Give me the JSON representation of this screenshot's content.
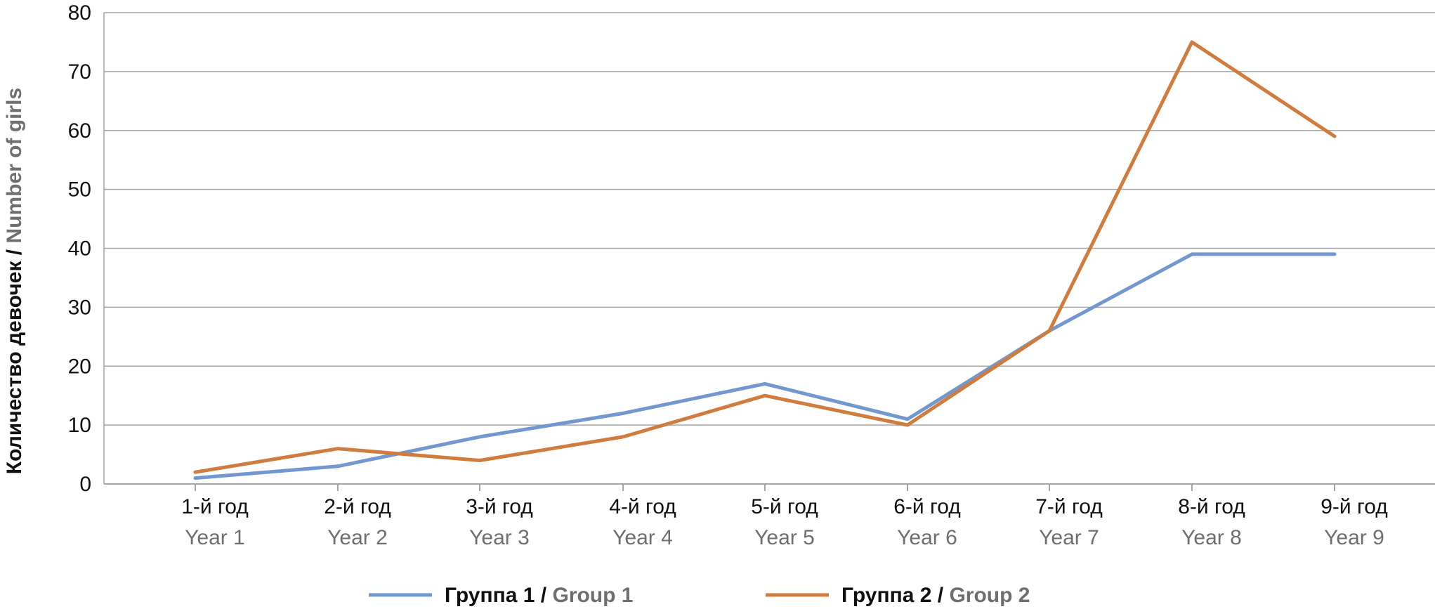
{
  "chart_data": {
    "type": "line",
    "ylabel": {
      "ru": "Количество девочек",
      "sep": " / ",
      "en": "Number of girls"
    },
    "ylim": [
      0,
      80
    ],
    "yticks": [
      0,
      10,
      20,
      30,
      40,
      50,
      60,
      70,
      80
    ],
    "grid": true,
    "legend_position": "bottom",
    "categories": [
      {
        "ru": "1-й год",
        "en": "Year 1"
      },
      {
        "ru": "2-й год",
        "en": "Year 2"
      },
      {
        "ru": "3-й год",
        "en": "Year 3"
      },
      {
        "ru": "4-й год",
        "en": "Year 4"
      },
      {
        "ru": "5-й год",
        "en": "Year 5"
      },
      {
        "ru": "6-й год",
        "en": "Year 6"
      },
      {
        "ru": "7-й год",
        "en": "Year 7"
      },
      {
        "ru": "8-й год",
        "en": "Year 8"
      },
      {
        "ru": "9-й год",
        "en": "Year 9"
      }
    ],
    "series": [
      {
        "name": {
          "ru": "Группа 1",
          "sep": " / ",
          "en": "Group 1"
        },
        "color": "#7298cf",
        "values": [
          1,
          3,
          8,
          12,
          17,
          11,
          26,
          39,
          39
        ]
      },
      {
        "name": {
          "ru": "Группа 2",
          "sep": " / ",
          "en": "Group 2"
        },
        "color": "#d07c3e",
        "values": [
          2,
          6,
          4,
          8,
          15,
          10,
          26,
          75,
          59
        ]
      }
    ],
    "colors": {
      "ru_text": "#111111",
      "en_text": "#6f6f6f",
      "grid": "#a6a6a6"
    }
  }
}
